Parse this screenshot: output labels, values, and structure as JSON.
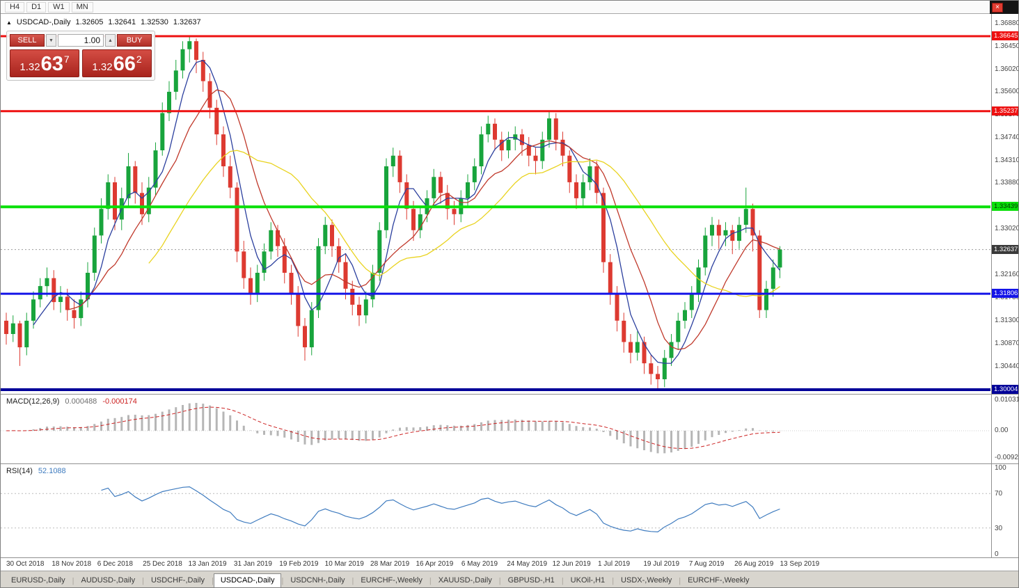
{
  "toolbar": {
    "timeframes": [
      "H4",
      "D1",
      "W1",
      "MN"
    ],
    "close_label": "×"
  },
  "chart": {
    "marker": "▲",
    "title": "USDCAD-,Daily",
    "open": "1.32605",
    "high": "1.32641",
    "low": "1.32530",
    "close": "1.32637"
  },
  "one_click": {
    "sell_label": "SELL",
    "buy_label": "BUY",
    "volume": "1.00",
    "volume_down_icon": "▼",
    "volume_up_icon": "▲",
    "sell_price": {
      "base": "1.32",
      "pips": "63",
      "pipette": "7",
      "value": "1.32637"
    },
    "buy_price": {
      "base": "1.32",
      "pips": "66",
      "pipette": "2",
      "value": "1.32662"
    }
  },
  "macd_panel": {
    "label": "MACD(12,26,9)",
    "value1": "0.000488",
    "value2": "-0.000174",
    "axis": [
      "0.010311",
      "0.00",
      "-0.009203"
    ]
  },
  "rsi_panel": {
    "label": "RSI(14)",
    "value": "52.1088",
    "axis": [
      "100",
      "70",
      "30",
      "0"
    ]
  },
  "date_axis": {
    "labels": [
      "30 Oct 2018",
      "18 Nov 2018",
      "6 Dec 2018",
      "25 Dec 2018",
      "13 Jan 2019",
      "31 Jan 2019",
      "19 Feb 2019",
      "10 Mar 2019",
      "28 Mar 2019",
      "16 Apr 2019",
      "6 May 2019",
      "24 May 2019",
      "12 Jun 2019",
      "1 Jul 2019",
      "19 Jul 2019",
      "7 Aug 2019",
      "26 Aug 2019",
      "13 Sep 2019"
    ]
  },
  "tabs": {
    "active_index": 3,
    "items": [
      "EURUSD-,Daily",
      "AUDUSD-,Daily",
      "USDCHF-,Daily",
      "USDCAD-,Daily",
      "USDCNH-,Daily",
      "EURCHF-,Weekly",
      "XAUUSD-,Daily",
      "GBPUSD-,H1",
      "UKOil-,H1",
      "USDX-,Weekly",
      "EURCHF-,Weekly"
    ]
  },
  "chart_data": {
    "type": "candlestick",
    "symbol": "USDCAD",
    "timeframe": "Daily",
    "title": "USDCAD-,Daily",
    "ohlc_current": {
      "open": 1.32605,
      "high": 1.32641,
      "low": 1.3253,
      "close": 1.32637
    },
    "ylim": [
      1.2992,
      1.3706
    ],
    "grid": false,
    "bg": "#ffffff",
    "colors": {
      "up": "#18a43c",
      "down": "#dd3a31"
    },
    "x_labels": [
      "30 Oct 2018",
      "18 Nov 2018",
      "6 Dec 2018",
      "25 Dec 2018",
      "13 Jan 2019",
      "31 Jan 2019",
      "19 Feb 2019",
      "10 Mar 2019",
      "28 Mar 2019",
      "16 Apr 2019",
      "6 May 2019",
      "24 May 2019",
      "12 Jun 2019",
      "1 Jul 2019",
      "19 Jul 2019",
      "7 Aug 2019",
      "26 Aug 2019",
      "13 Sep 2019"
    ],
    "candles": [
      [
        1.313,
        1.3145,
        1.3085,
        1.3105
      ],
      [
        1.3105,
        1.314,
        1.309,
        1.3125
      ],
      [
        1.3125,
        1.313,
        1.3045,
        1.308
      ],
      [
        1.308,
        1.3145,
        1.3065,
        1.313
      ],
      [
        1.313,
        1.3185,
        1.3115,
        1.317
      ],
      [
        1.317,
        1.321,
        1.3155,
        1.3195
      ],
      [
        1.3195,
        1.323,
        1.3175,
        1.321
      ],
      [
        1.321,
        1.3225,
        1.315,
        1.3165
      ],
      [
        1.3165,
        1.3195,
        1.3145,
        1.3175
      ],
      [
        1.3175,
        1.319,
        1.313,
        1.315
      ],
      [
        1.315,
        1.317,
        1.3115,
        1.3135
      ],
      [
        1.3135,
        1.3185,
        1.312,
        1.317
      ],
      [
        1.317,
        1.324,
        1.3155,
        1.322
      ],
      [
        1.322,
        1.3305,
        1.3205,
        1.329
      ],
      [
        1.329,
        1.336,
        1.3275,
        1.334
      ],
      [
        1.334,
        1.3405,
        1.332,
        1.339
      ],
      [
        1.339,
        1.34,
        1.33,
        1.332
      ],
      [
        1.332,
        1.338,
        1.33,
        1.336
      ],
      [
        1.336,
        1.3445,
        1.3345,
        1.342
      ],
      [
        1.342,
        1.343,
        1.335,
        1.337
      ],
      [
        1.337,
        1.339,
        1.331,
        1.333
      ],
      [
        1.333,
        1.34,
        1.3315,
        1.338
      ],
      [
        1.338,
        1.3465,
        1.3365,
        1.345
      ],
      [
        1.345,
        1.354,
        1.344,
        1.352
      ],
      [
        1.352,
        1.358,
        1.3505,
        1.356
      ],
      [
        1.356,
        1.362,
        1.3545,
        1.36
      ],
      [
        1.36,
        1.3655,
        1.3585,
        1.364
      ],
      [
        1.364,
        1.3664,
        1.3615,
        1.3655
      ],
      [
        1.3655,
        1.366,
        1.3595,
        1.362
      ],
      [
        1.362,
        1.3635,
        1.356,
        1.358
      ],
      [
        1.358,
        1.3595,
        1.351,
        1.353
      ],
      [
        1.353,
        1.3545,
        1.346,
        1.348
      ],
      [
        1.348,
        1.3495,
        1.34,
        1.342
      ],
      [
        1.342,
        1.344,
        1.336,
        1.338
      ],
      [
        1.338,
        1.339,
        1.324,
        1.326
      ],
      [
        1.326,
        1.328,
        1.319,
        1.321
      ],
      [
        1.321,
        1.323,
        1.316,
        1.318
      ],
      [
        1.318,
        1.3235,
        1.3165,
        1.322
      ],
      [
        1.322,
        1.3275,
        1.3205,
        1.326
      ],
      [
        1.326,
        1.3315,
        1.3245,
        1.33
      ],
      [
        1.33,
        1.331,
        1.325,
        1.327
      ],
      [
        1.327,
        1.3285,
        1.32,
        1.322
      ],
      [
        1.322,
        1.3235,
        1.316,
        1.318
      ],
      [
        1.318,
        1.3195,
        1.31,
        1.312
      ],
      [
        1.312,
        1.3135,
        1.3055,
        1.308
      ],
      [
        1.308,
        1.3165,
        1.3065,
        1.315
      ],
      [
        1.315,
        1.3285,
        1.3135,
        1.327
      ],
      [
        1.327,
        1.3325,
        1.3255,
        1.331
      ],
      [
        1.331,
        1.332,
        1.325,
        1.327
      ],
      [
        1.327,
        1.3285,
        1.322,
        1.324
      ],
      [
        1.324,
        1.3255,
        1.317,
        1.319
      ],
      [
        1.319,
        1.3205,
        1.314,
        1.316
      ],
      [
        1.316,
        1.3175,
        1.312,
        1.314
      ],
      [
        1.314,
        1.3185,
        1.3125,
        1.317
      ],
      [
        1.317,
        1.3235,
        1.3155,
        1.322
      ],
      [
        1.322,
        1.3315,
        1.3205,
        1.33
      ],
      [
        1.33,
        1.3435,
        1.3285,
        1.342
      ],
      [
        1.342,
        1.3455,
        1.34,
        1.344
      ],
      [
        1.344,
        1.345,
        1.337,
        1.339
      ],
      [
        1.339,
        1.3405,
        1.332,
        1.334
      ],
      [
        1.334,
        1.3355,
        1.328,
        1.33
      ],
      [
        1.33,
        1.3345,
        1.3285,
        1.333
      ],
      [
        1.333,
        1.3375,
        1.3315,
        1.336
      ],
      [
        1.336,
        1.3415,
        1.3345,
        1.34
      ],
      [
        1.34,
        1.341,
        1.335,
        1.337
      ],
      [
        1.337,
        1.3385,
        1.332,
        1.334
      ],
      [
        1.334,
        1.3355,
        1.331,
        1.333
      ],
      [
        1.333,
        1.3375,
        1.3315,
        1.336
      ],
      [
        1.336,
        1.3405,
        1.3345,
        1.339
      ],
      [
        1.339,
        1.3435,
        1.3375,
        1.342
      ],
      [
        1.342,
        1.3495,
        1.3405,
        1.348
      ],
      [
        1.348,
        1.3515,
        1.3465,
        1.35
      ],
      [
        1.35,
        1.351,
        1.345,
        1.347
      ],
      [
        1.347,
        1.3485,
        1.343,
        1.345
      ],
      [
        1.345,
        1.3485,
        1.3435,
        1.347
      ],
      [
        1.347,
        1.3495,
        1.345,
        1.348
      ],
      [
        1.348,
        1.349,
        1.344,
        1.346
      ],
      [
        1.346,
        1.3475,
        1.342,
        1.344
      ],
      [
        1.344,
        1.3455,
        1.3405,
        1.343
      ],
      [
        1.343,
        1.3485,
        1.3415,
        1.347
      ],
      [
        1.347,
        1.3522,
        1.3455,
        1.351
      ],
      [
        1.351,
        1.352,
        1.345,
        1.347
      ],
      [
        1.347,
        1.3485,
        1.342,
        1.344
      ],
      [
        1.344,
        1.345,
        1.337,
        1.339
      ],
      [
        1.339,
        1.3405,
        1.334,
        1.336
      ],
      [
        1.336,
        1.3405,
        1.3345,
        1.339
      ],
      [
        1.339,
        1.3435,
        1.3375,
        1.342
      ],
      [
        1.342,
        1.343,
        1.335,
        1.337
      ],
      [
        1.337,
        1.338,
        1.322,
        1.324
      ],
      [
        1.324,
        1.3255,
        1.316,
        1.318
      ],
      [
        1.318,
        1.3195,
        1.311,
        1.313
      ],
      [
        1.313,
        1.3145,
        1.307,
        1.309
      ],
      [
        1.309,
        1.3105,
        1.305,
        1.307
      ],
      [
        1.307,
        1.311,
        1.3055,
        1.309
      ],
      [
        1.309,
        1.31,
        1.303,
        1.305
      ],
      [
        1.305,
        1.3065,
        1.301,
        1.303
      ],
      [
        1.303,
        1.3045,
        1.3002,
        1.302
      ],
      [
        1.302,
        1.3075,
        1.3005,
        1.306
      ],
      [
        1.306,
        1.3105,
        1.3045,
        1.309
      ],
      [
        1.309,
        1.3145,
        1.3075,
        1.313
      ],
      [
        1.313,
        1.3165,
        1.3115,
        1.315
      ],
      [
        1.315,
        1.3195,
        1.3135,
        1.318
      ],
      [
        1.318,
        1.3245,
        1.3165,
        1.323
      ],
      [
        1.323,
        1.3305,
        1.3215,
        1.329
      ],
      [
        1.329,
        1.3325,
        1.327,
        1.331
      ],
      [
        1.331,
        1.332,
        1.3265,
        1.329
      ],
      [
        1.329,
        1.3315,
        1.327,
        1.33
      ],
      [
        1.33,
        1.331,
        1.3255,
        1.328
      ],
      [
        1.328,
        1.3325,
        1.3265,
        1.331
      ],
      [
        1.331,
        1.338,
        1.3295,
        1.334
      ],
      [
        1.334,
        1.335,
        1.326,
        1.329
      ],
      [
        1.329,
        1.33,
        1.3135,
        1.315
      ],
      [
        1.315,
        1.3205,
        1.3135,
        1.319
      ],
      [
        1.319,
        1.3245,
        1.3175,
        1.323
      ],
      [
        1.323,
        1.327,
        1.321,
        1.32637
      ]
    ],
    "overlays": [
      {
        "name": "ma-fast-line",
        "period": 5,
        "color": "#2b3f9e"
      },
      {
        "name": "ma-mid-line",
        "period": 10,
        "color": "#c0392b"
      },
      {
        "name": "ma-slow-line",
        "period": 22,
        "color": "#e9d31f"
      }
    ],
    "hlines": [
      {
        "value": 1.36645,
        "label": "1.36645",
        "color": "#ee1111",
        "width": 3,
        "tag_fg": "#ffffff"
      },
      {
        "value": 1.35237,
        "label": "1.35237",
        "color": "#ee1111",
        "width": 3,
        "tag_fg": "#ffffff"
      },
      {
        "value": 1.33439,
        "label": "1.33439",
        "color": "#0ae00a",
        "width": 4,
        "tag_fg": "#003300"
      },
      {
        "value": 1.31806,
        "label": "1.31806",
        "color": "#1414e8",
        "width": 3,
        "tag_fg": "#ffffff"
      },
      {
        "value": 1.30004,
        "label": "1.30004",
        "color": "#000099",
        "width": 4,
        "tag_fg": "#ffffff"
      }
    ],
    "current_price": {
      "value": 1.32637,
      "label": "1.32637",
      "tag_bg": "#3a3a3a",
      "tag_fg": "#ffffff"
    },
    "price_axis_labels": [
      "1.36880",
      "1.36450",
      "1.36020",
      "1.35600",
      "1.35170",
      "1.34740",
      "1.34310",
      "1.33880",
      "1.33450",
      "1.33020",
      "1.32590",
      "1.32160",
      "1.31730",
      "1.31300",
      "1.30870",
      "1.30440"
    ],
    "indicators": {
      "macd": {
        "params": [
          12,
          26,
          9
        ],
        "display_values": [
          0.000488,
          -0.000174
        ],
        "axis_max": 0.010311,
        "axis_min": -0.009203,
        "signal_style": "red-dashed",
        "histogram_color": "#b6b6b6"
      },
      "rsi": {
        "period": 14,
        "display_value": 52.1088,
        "range": [
          0,
          100
        ],
        "levels": [
          70,
          30
        ],
        "line_color": "#3e7bbf"
      }
    }
  }
}
